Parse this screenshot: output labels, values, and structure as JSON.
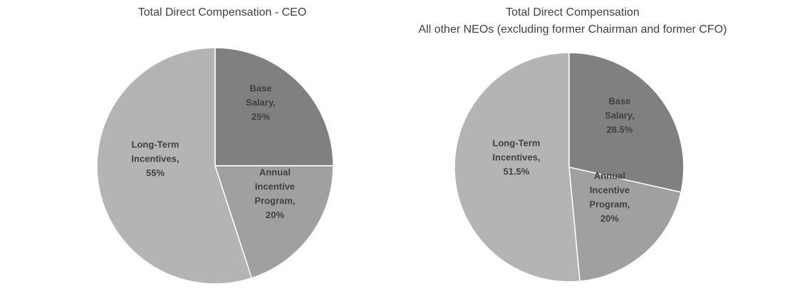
{
  "chart_data": [
    {
      "type": "pie",
      "title_lines": [
        "Total Direct Compensation - CEO"
      ],
      "slices": [
        {
          "name": "Base Salary",
          "value": 25,
          "label_lines": [
            "Base",
            "Salary,",
            "25%"
          ],
          "color": "#808080"
        },
        {
          "name": "Annual Incentive Program",
          "value": 20,
          "label_lines": [
            "Annual",
            "Incentive",
            "Program,",
            "20%"
          ],
          "color": "#a0a0a0"
        },
        {
          "name": "Long-Term Incentives",
          "value": 55,
          "label_lines": [
            "Long-Term",
            "Incentives,",
            "55%"
          ],
          "color": "#b4b4b4"
        }
      ]
    },
    {
      "type": "pie",
      "title_lines": [
        "Total Direct Compensation",
        "All other NEOs (excluding former Chairman and former CFO)"
      ],
      "slices": [
        {
          "name": "Base Salary",
          "value": 28.5,
          "label_lines": [
            "Base",
            "Salary,",
            "28.5%"
          ],
          "color": "#808080"
        },
        {
          "name": "Annual Incentive Program",
          "value": 20,
          "label_lines": [
            "Annual",
            "Incentive",
            "Program,",
            "20%"
          ],
          "color": "#a0a0a0"
        },
        {
          "name": "Long-Term Incentives",
          "value": 51.5,
          "label_lines": [
            "Long-Term",
            "Incentives,",
            "51.5%"
          ],
          "color": "#b4b4b4"
        }
      ]
    }
  ]
}
